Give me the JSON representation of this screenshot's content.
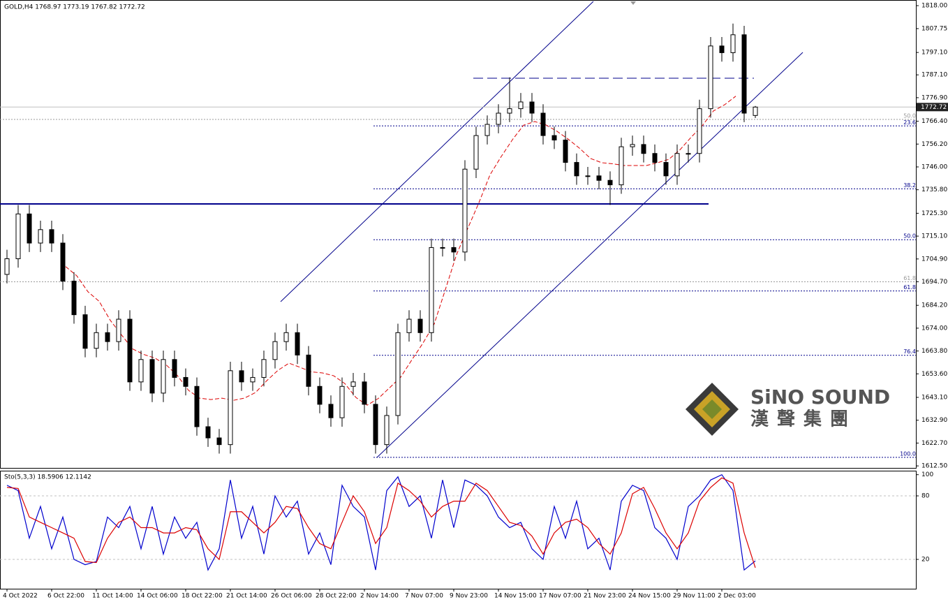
{
  "chart_data": [
    {
      "type": "candlestick",
      "title": "GOLD,H4  1768.97 1773.19 1767.82 1772.72",
      "categories": [
        "4 Oct 2022",
        null,
        null,
        null,
        "6 Oct 22:00",
        null,
        null,
        null,
        "11 Oct 14:00",
        null,
        null,
        null,
        "14 Oct 06:00",
        null,
        null,
        null,
        "18 Oct 22:00",
        null,
        null,
        null,
        "21 Oct 14:00",
        null,
        null,
        null,
        "26 Oct 06:00",
        null,
        null,
        null,
        "28 Oct 22:00",
        null,
        null,
        null,
        "2 Nov 14:00",
        null,
        null,
        null,
        "7 Nov 07:00",
        null,
        null,
        null,
        "9 Nov 23:00",
        null,
        null,
        null,
        "14 Nov 15:00",
        null,
        null,
        null,
        "17 Nov 07:00",
        null,
        null,
        null,
        "21 Nov 23:00",
        null,
        null,
        null,
        "24 Nov 15:00",
        null,
        null,
        null,
        "29 Nov 11:00",
        null,
        null,
        null,
        "2 Dec 03:00",
        null,
        null,
        null
      ],
      "open": [
        1698,
        1705,
        1725,
        1712,
        1718,
        1712,
        1695,
        1680,
        1665,
        1672,
        1668,
        1678,
        1650,
        1660,
        1645,
        1660,
        1652,
        1648,
        1630,
        1625,
        1622,
        1655,
        1650,
        1652,
        1660,
        1668,
        1672,
        1662,
        1648,
        1640,
        1634,
        1648,
        1650,
        1640,
        1622,
        1635,
        1672,
        1678,
        1672,
        1710,
        1710,
        1708,
        1745,
        1760,
        1765,
        1770,
        1772,
        1775,
        1770,
        1760,
        1758,
        1748,
        1742,
        1742,
        1740,
        1738,
        1755,
        1756,
        1752,
        1748,
        1742,
        1752,
        1752,
        1772,
        1800,
        1797,
        1805,
        1768.97
      ],
      "high": [
        1709,
        1729,
        1729,
        1722,
        1722,
        1716,
        1699,
        1684,
        1676,
        1676,
        1682,
        1682,
        1664,
        1664,
        1664,
        1664,
        1656,
        1652,
        1634,
        1629,
        1659,
        1659,
        1656,
        1664,
        1672,
        1676,
        1676,
        1666,
        1652,
        1644,
        1652,
        1654,
        1654,
        1644,
        1639,
        1676,
        1682,
        1682,
        1714,
        1714,
        1714,
        1749,
        1764,
        1769,
        1774,
        1786,
        1779,
        1779,
        1774,
        1764,
        1762,
        1752,
        1746,
        1746,
        1744,
        1759,
        1760,
        1760,
        1756,
        1752,
        1756,
        1756,
        1776,
        1804,
        1804,
        1810,
        1809,
        1773.19
      ],
      "low": [
        1694,
        1701,
        1708,
        1708,
        1708,
        1691,
        1676,
        1661,
        1661,
        1664,
        1664,
        1646,
        1646,
        1641,
        1641,
        1648,
        1644,
        1626,
        1621,
        1618,
        1618,
        1646,
        1646,
        1648,
        1656,
        1664,
        1658,
        1644,
        1636,
        1630,
        1630,
        1644,
        1636,
        1618,
        1618,
        1631,
        1668,
        1668,
        1668,
        1706,
        1704,
        1704,
        1741,
        1756,
        1761,
        1766,
        1768,
        1766,
        1756,
        1754,
        1744,
        1738,
        1738,
        1736,
        1729,
        1734,
        1751,
        1748,
        1744,
        1738,
        1738,
        1748,
        1748,
        1768,
        1793,
        1793,
        1766,
        1767.82
      ],
      "close": [
        1705,
        1725,
        1712,
        1718,
        1712,
        1695,
        1680,
        1665,
        1672,
        1668,
        1678,
        1650,
        1660,
        1645,
        1660,
        1652,
        1648,
        1630,
        1625,
        1622,
        1655,
        1650,
        1652,
        1660,
        1668,
        1672,
        1662,
        1648,
        1640,
        1634,
        1648,
        1650,
        1640,
        1622,
        1635,
        1672,
        1678,
        1672,
        1710,
        1710,
        1708,
        1745,
        1760,
        1765,
        1770,
        1772,
        1775,
        1770,
        1760,
        1758,
        1748,
        1742,
        1742,
        1740,
        1738,
        1755,
        1756,
        1752,
        1748,
        1742,
        1752,
        1752,
        1772,
        1800,
        1797,
        1805,
        1770,
        1772.72
      ],
      "ylim": [
        1611.6,
        1819.9
      ],
      "yticks": [
        {
          "value": 1818,
          "label": "1818.00"
        },
        {
          "value": 1807.75,
          "label": "1807.75"
        },
        {
          "value": 1797.1,
          "label": "1797.10"
        },
        {
          "value": 1787.1,
          "label": "1787.10"
        },
        {
          "value": 1776.9,
          "label": "1776.90"
        },
        {
          "value": 1766.4,
          "label": "1766.40"
        },
        {
          "value": 1756.2,
          "label": "1756.20"
        },
        {
          "value": 1746,
          "label": "1746.00"
        },
        {
          "value": 1735.8,
          "label": "1735.80"
        },
        {
          "value": 1725.3,
          "label": "1725.30"
        },
        {
          "value": 1715.1,
          "label": "1715.10"
        },
        {
          "value": 1704.9,
          "label": "1704.90"
        },
        {
          "value": 1694.7,
          "label": "1694.70"
        },
        {
          "value": 1684.2,
          "label": "1684.20"
        },
        {
          "value": 1674,
          "label": "1674.00"
        },
        {
          "value": 1663.8,
          "label": "1663.80"
        },
        {
          "value": 1653.6,
          "label": "1653.60"
        },
        {
          "value": 1643.1,
          "label": "1643.10"
        },
        {
          "value": 1632.9,
          "label": "1632.90"
        },
        {
          "value": 1622.7,
          "label": "1622.70"
        },
        {
          "value": 1612.5,
          "label": "1612.50"
        }
      ],
      "last_price": {
        "value": 1772.72,
        "label": "1772.72"
      },
      "fib_levels": [
        {
          "label": "50.0",
          "value": 1767.2,
          "color": "#999999"
        },
        {
          "label": "23.6",
          "value": 1764.3,
          "color": "#00008b"
        },
        {
          "label": "38.2",
          "value": 1736.2,
          "color": "#00008b"
        },
        {
          "label": "50.0",
          "value": 1713.5,
          "color": "#00008b"
        },
        {
          "label": "61.8",
          "value": 1694.7,
          "color": "#999999"
        },
        {
          "label": "61.8",
          "value": 1690.6,
          "color": "#00008b"
        },
        {
          "label": "76.4",
          "value": 1661.9,
          "color": "#00008b"
        },
        {
          "label": "100.0",
          "value": 1616.3,
          "color": "#00008b"
        }
      ]
    },
    {
      "type": "line",
      "title": "Sto(5,3,3) 18.5906 12.1142",
      "series": [
        {
          "color": "#0000cd",
          "values": [
            90,
            85,
            40,
            70,
            30,
            60,
            20,
            15,
            18,
            60,
            50,
            70,
            30,
            70,
            25,
            60,
            40,
            55,
            10,
            30,
            95,
            40,
            70,
            25,
            80,
            60,
            75,
            25,
            45,
            15,
            90,
            70,
            60,
            10,
            85,
            98,
            70,
            80,
            40,
            95,
            50,
            95,
            90,
            80,
            60,
            50,
            55,
            30,
            20,
            70,
            40,
            75,
            30,
            40,
            10,
            75,
            90,
            85,
            50,
            40,
            20,
            70,
            80,
            95,
            100,
            85,
            10,
            18.5906
          ]
        },
        {
          "color": "#dc0000",
          "values": [
            88,
            87,
            60,
            55,
            50,
            45,
            40,
            18,
            17,
            40,
            55,
            60,
            50,
            50,
            45,
            45,
            50,
            48,
            30,
            20,
            65,
            65,
            55,
            45,
            55,
            70,
            68,
            50,
            35,
            30,
            55,
            80,
            65,
            35,
            50,
            92,
            85,
            75,
            60,
            70,
            75,
            75,
            92,
            85,
            70,
            55,
            52,
            42,
            25,
            45,
            55,
            58,
            50,
            35,
            25,
            45,
            82,
            88,
            68,
            45,
            30,
            45,
            75,
            88,
            97,
            92,
            45,
            12.1142
          ]
        }
      ],
      "ylim": [
        -7.7,
        103.1
      ],
      "yticks": [
        100,
        80,
        20
      ]
    }
  ],
  "watermark": {
    "brand": "SiNO SOUND",
    "chinese": "漢聲集團"
  }
}
